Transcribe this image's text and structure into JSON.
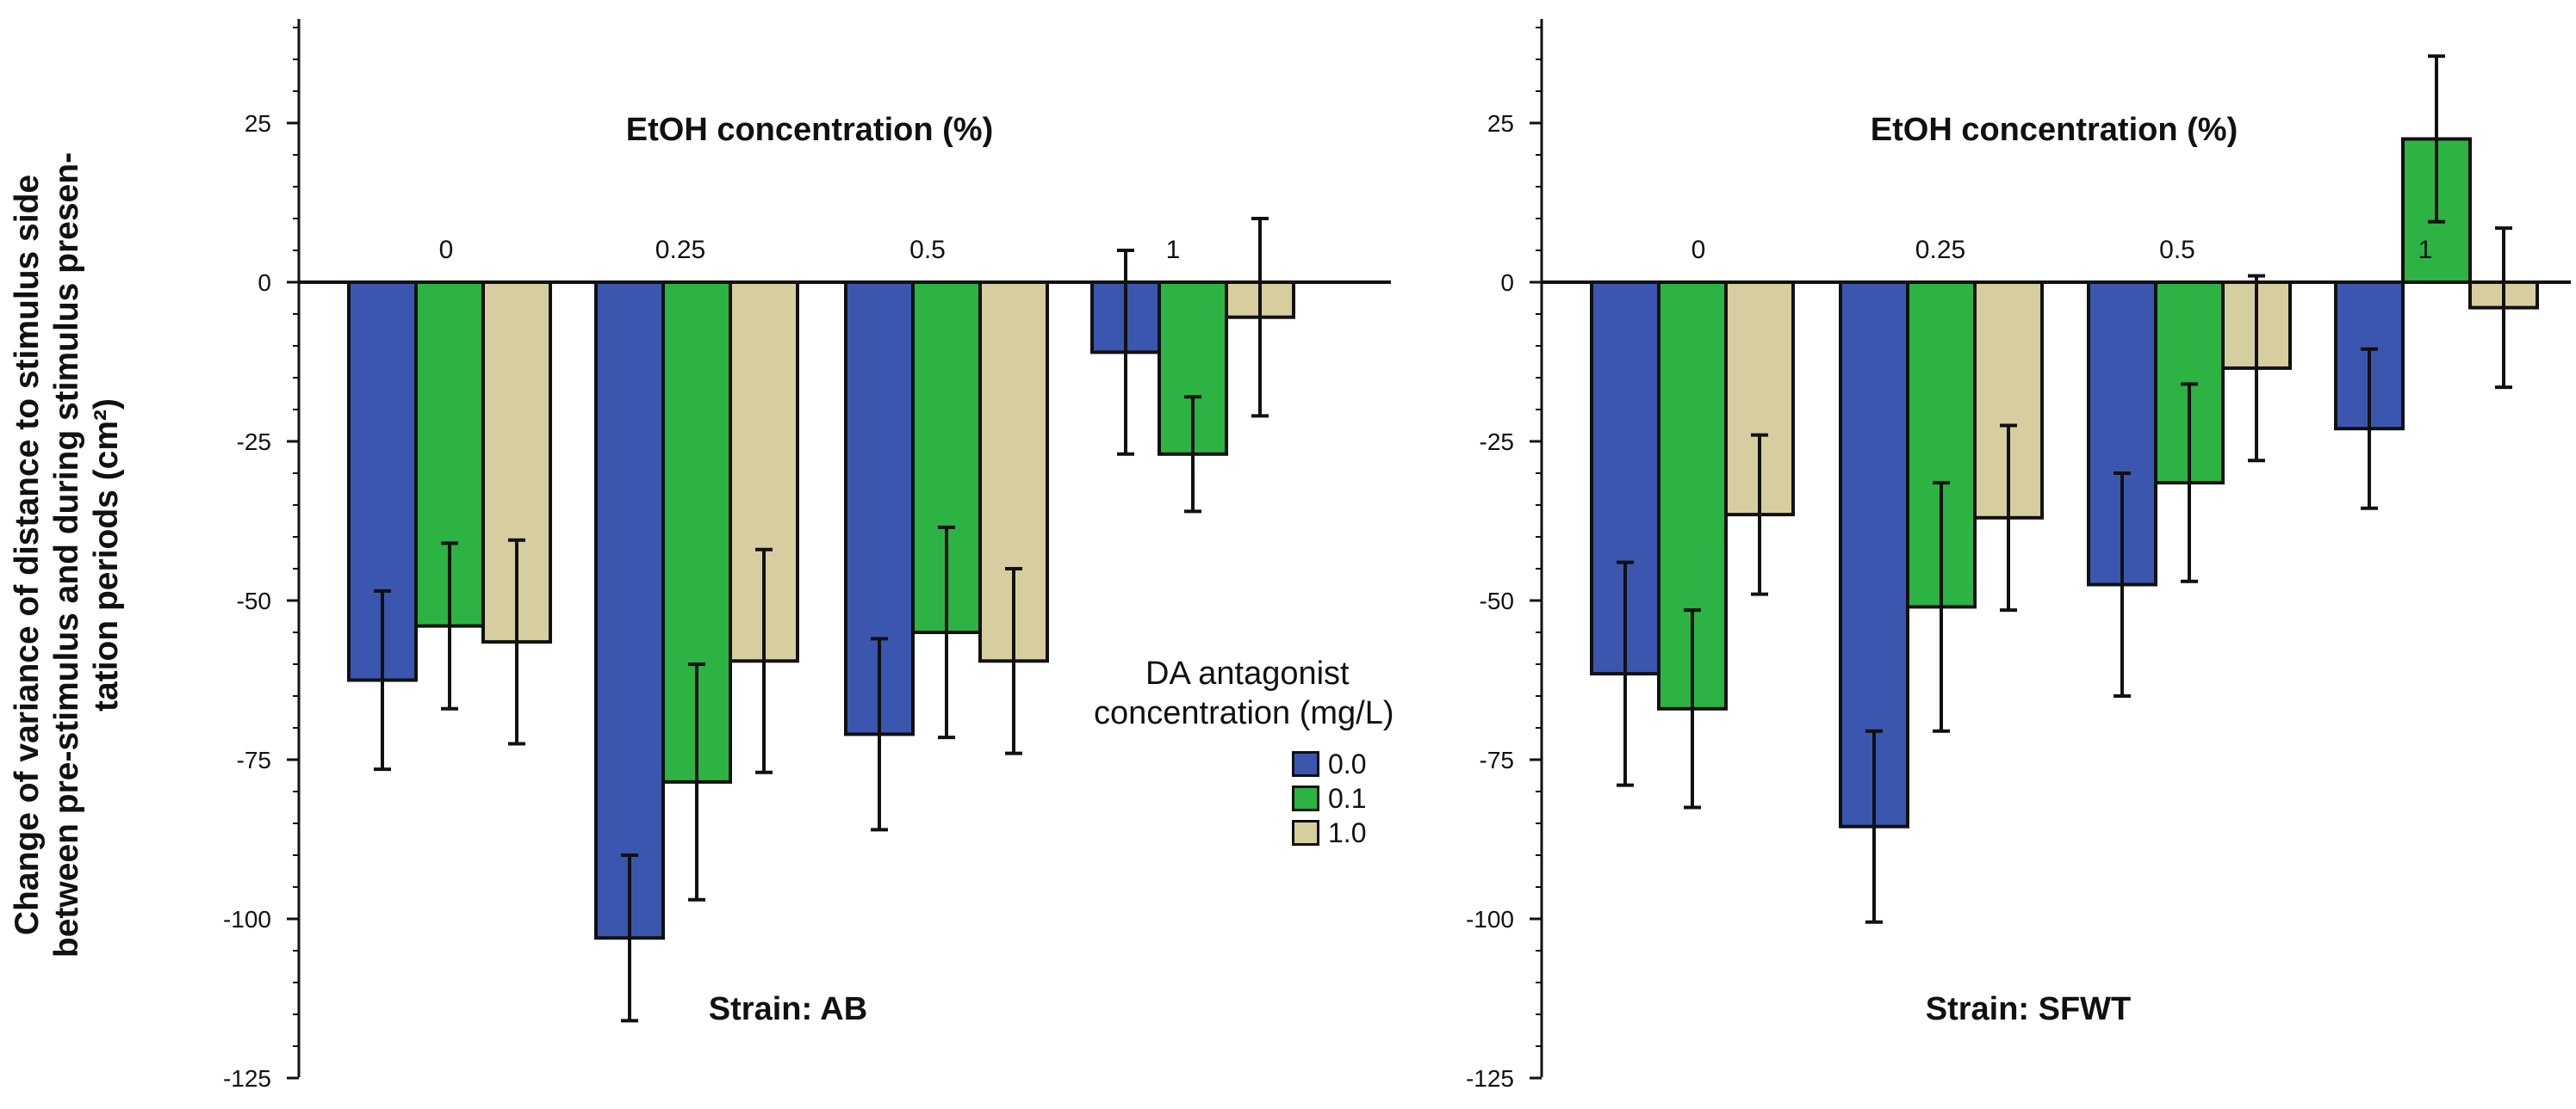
{
  "y_axis_title_lines": [
    "Change of variance of distance to stimulus side",
    "between pre-stimulus and during stimulus presen-",
    "tation periods (cm²)"
  ],
  "legend": {
    "title_line1": "DA antagonist",
    "title_line2": "concentration (mg/L)",
    "entries": [
      {
        "label": "0.0",
        "color": "#3a56ae"
      },
      {
        "label": "0.1",
        "color": "#2db343"
      },
      {
        "label": "1.0",
        "color": "#d7cea0"
      }
    ]
  },
  "chart_data": [
    {
      "type": "bar",
      "panel_label": "Strain: AB",
      "category_title": "EtOH concentration (%)",
      "categories": [
        "0",
        "0.25",
        "0.5",
        "1"
      ],
      "ylabel": "Change of variance of distance to stimulus side between pre-stimulus and during stimulus presentation periods (cm²)",
      "ylim": [
        -125,
        40
      ],
      "yticks": [
        25,
        0,
        -25,
        -50,
        -75,
        -100,
        -125
      ],
      "series": [
        {
          "name": "0.0",
          "values": [
            -62.5,
            -103,
            -71,
            -11
          ],
          "errors": [
            14,
            13,
            15,
            16
          ]
        },
        {
          "name": "0.1",
          "values": [
            -54,
            -78.5,
            -55,
            -27
          ],
          "errors": [
            13,
            18.5,
            16.5,
            9
          ]
        },
        {
          "name": "1.0",
          "values": [
            -56.5,
            -59.5,
            -59.5,
            -5.5
          ],
          "errors": [
            16,
            17.5,
            14.5,
            15.5
          ]
        }
      ]
    },
    {
      "type": "bar",
      "panel_label": "Strain: SFWT",
      "category_title": "EtOH concentration (%)",
      "categories": [
        "0",
        "0.25",
        "0.5",
        "1"
      ],
      "ylabel": "",
      "ylim": [
        -125,
        40
      ],
      "yticks": [
        25,
        0,
        -25,
        -50,
        -75,
        -100,
        -125
      ],
      "series": [
        {
          "name": "0.0",
          "values": [
            -61.5,
            -85.5,
            -47.5,
            -23
          ],
          "errors": [
            17.5,
            15,
            17.5,
            12.5
          ]
        },
        {
          "name": "0.1",
          "values": [
            -67,
            -51,
            -31.5,
            22.5
          ],
          "errors": [
            15.5,
            19.5,
            15.5,
            13
          ]
        },
        {
          "name": "1.0",
          "values": [
            -36.5,
            -37,
            -13.5,
            -4
          ],
          "errors": [
            12.5,
            14.5,
            14.5,
            12.5
          ]
        }
      ]
    }
  ]
}
